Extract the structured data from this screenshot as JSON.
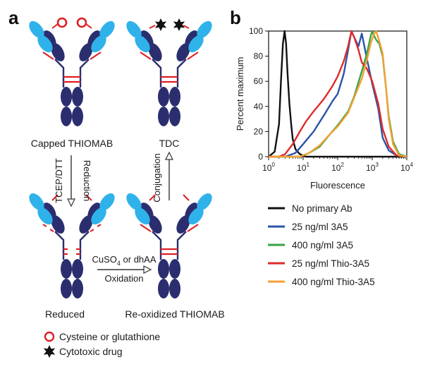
{
  "panel_a": {
    "panel_label": "a",
    "states": {
      "capped": "Capped THIOMAB",
      "tdc": "TDC",
      "reduced": "Reduced",
      "reoxidized": "Re-oxidized THIOMAB"
    },
    "arrows": {
      "reduction_reagent": "TCEP/DTT",
      "reduction": "Reduction",
      "conjugation": "Conjugation",
      "oxidation_reagent_prefix": "CuSO",
      "oxidation_reagent_sub": "4",
      "oxidation_reagent_suffix": " or dhAA",
      "oxidation": "Oxidation"
    },
    "key": {
      "cysteine": "Cysteine or glutathione",
      "drug": "Cytotoxic drug"
    },
    "colors": {
      "light_chain": "#2fb2ea",
      "heavy_chain": "#2b2e6e",
      "disulfide": "#e01e24",
      "drug": "#111111"
    }
  },
  "panel_b": {
    "panel_label": "b",
    "chart_data": {
      "type": "line",
      "xlabel": "Fluorescence",
      "ylabel": "Percent maximum",
      "xscale": "log",
      "xlim": [
        1,
        10000
      ],
      "ylim": [
        0,
        100
      ],
      "x_ticks": [
        1,
        10,
        100,
        1000,
        10000
      ],
      "y_ticks": [
        0,
        20,
        40,
        60,
        80,
        100
      ],
      "grid": false,
      "legend_position": "below",
      "series": [
        {
          "name": "No primary Ab",
          "color": "#111111",
          "x": [
            1,
            1.5,
            2,
            2.3,
            2.6,
            2.9,
            3.2,
            3.5,
            4,
            4.5,
            5,
            6,
            8,
            12,
            20,
            50,
            10000
          ],
          "y": [
            0,
            4,
            26,
            62,
            90,
            100,
            90,
            68,
            42,
            26,
            14,
            6,
            2,
            0,
            0,
            0,
            0
          ]
        },
        {
          "name": "25 ng/ml 3A5",
          "color": "#2b54a6",
          "x": [
            1,
            3,
            6,
            10,
            20,
            40,
            70,
            100,
            150,
            200,
            250,
            300,
            400,
            500,
            700,
            1000,
            1500,
            2000,
            3000,
            5000,
            10000
          ],
          "y": [
            0,
            0,
            3,
            10,
            20,
            33,
            44,
            50,
            66,
            85,
            100,
            95,
            88,
            98,
            78,
            58,
            38,
            15,
            5,
            1,
            0
          ]
        },
        {
          "name": "400 ng/ml 3A5",
          "color": "#3aa345",
          "x": [
            1,
            8,
            15,
            30,
            60,
            100,
            200,
            300,
            500,
            700,
            900,
            1000,
            1100,
            1300,
            1600,
            2000,
            2500,
            3000,
            4000,
            6000,
            10000
          ],
          "y": [
            0,
            0,
            3,
            8,
            18,
            25,
            36,
            48,
            68,
            82,
            96,
            100,
            97,
            93,
            90,
            80,
            55,
            32,
            12,
            2,
            0
          ]
        },
        {
          "name": "25 ng/ml Thio-3A5",
          "color": "#e02a2a",
          "x": [
            1,
            2,
            3,
            5,
            8,
            12,
            20,
            40,
            70,
            100,
            150,
            200,
            250,
            300,
            400,
            500,
            700,
            1000,
            1500,
            2000,
            3000,
            5000,
            10000
          ],
          "y": [
            0,
            0,
            2,
            10,
            20,
            28,
            36,
            46,
            56,
            64,
            76,
            88,
            100,
            95,
            85,
            75,
            70,
            60,
            42,
            22,
            8,
            1,
            0
          ]
        },
        {
          "name": "400 ng/ml Thio-3A5",
          "color": "#f3a032",
          "x": [
            1,
            8,
            15,
            30,
            60,
            100,
            200,
            300,
            500,
            700,
            900,
            1100,
            1300,
            1600,
            2000,
            2500,
            3000,
            4000,
            6000,
            10000
          ],
          "y": [
            0,
            0,
            3,
            9,
            18,
            24,
            35,
            47,
            62,
            77,
            90,
            97,
            100,
            92,
            82,
            55,
            30,
            10,
            1,
            0
          ]
        }
      ]
    }
  }
}
